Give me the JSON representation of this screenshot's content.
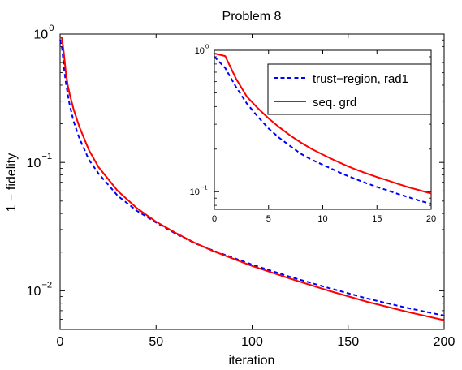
{
  "chart_data": {
    "title": "Problem  8",
    "type": "line",
    "xlabel": "iteration",
    "ylabel": "1 − fidelity",
    "xlim": [
      0,
      200
    ],
    "ylim": [
      0.005,
      1
    ],
    "yscale": "log",
    "grid": false,
    "x_ticks": [
      0,
      50,
      100,
      150,
      200
    ],
    "y_ticks": [
      {
        "value": 0.01,
        "base": "10",
        "exp": "−2"
      },
      {
        "value": 0.1,
        "base": "10",
        "exp": "−1"
      },
      {
        "value": 1,
        "base": "10",
        "exp": "0"
      }
    ],
    "series": [
      {
        "name": "trust−region, rad1",
        "color": "#0000ff",
        "dash": "dashed",
        "x": [
          0,
          1,
          2,
          3,
          4,
          5,
          7,
          10,
          15,
          20,
          30,
          40,
          50,
          60,
          70,
          80,
          100,
          120,
          140,
          160,
          180,
          200
        ],
        "y": [
          0.9,
          0.78,
          0.55,
          0.42,
          0.34,
          0.28,
          0.21,
          0.155,
          0.105,
          0.082,
          0.055,
          0.042,
          0.034,
          0.028,
          0.0235,
          0.0205,
          0.016,
          0.0128,
          0.0105,
          0.0087,
          0.0074,
          0.0064
        ]
      },
      {
        "name": "seq. grd",
        "color": "#ff0000",
        "dash": "solid",
        "x": [
          0,
          1,
          2,
          3,
          4,
          5,
          7,
          10,
          15,
          20,
          30,
          40,
          50,
          60,
          70,
          80,
          100,
          120,
          140,
          160,
          180,
          200
        ],
        "y": [
          0.95,
          0.93,
          0.7,
          0.5,
          0.4,
          0.34,
          0.26,
          0.19,
          0.125,
          0.092,
          0.06,
          0.044,
          0.0345,
          0.0283,
          0.0237,
          0.0203,
          0.0156,
          0.0124,
          0.01,
          0.0082,
          0.0069,
          0.0059
        ]
      }
    ],
    "inset": {
      "xlim": [
        0,
        20
      ],
      "ylim": [
        0.075,
        1
      ],
      "yscale": "log",
      "x_ticks": [
        0,
        5,
        10,
        15,
        20
      ],
      "y_ticks": [
        {
          "value": 0.1,
          "base": "10",
          "exp": "−1"
        },
        {
          "value": 1,
          "base": "10",
          "exp": "0"
        }
      ],
      "legend_position": "top-right",
      "series": [
        {
          "name": "trust−region, rad1",
          "color": "#0000ff",
          "dash": "dashed",
          "x": [
            0,
            1,
            2,
            3,
            4,
            5,
            6,
            7,
            8,
            9,
            10,
            11,
            12,
            13,
            14,
            15,
            16,
            17,
            18,
            19,
            20
          ],
          "y": [
            0.9,
            0.75,
            0.55,
            0.42,
            0.34,
            0.28,
            0.24,
            0.21,
            0.185,
            0.168,
            0.155,
            0.143,
            0.132,
            0.123,
            0.115,
            0.108,
            0.102,
            0.096,
            0.091,
            0.086,
            0.082
          ]
        },
        {
          "name": "seq. grd",
          "color": "#ff0000",
          "dash": "solid",
          "x": [
            0,
            1,
            2,
            3,
            4,
            5,
            6,
            7,
            8,
            9,
            10,
            11,
            12,
            13,
            14,
            15,
            16,
            17,
            18,
            19,
            20
          ],
          "y": [
            0.95,
            0.91,
            0.63,
            0.47,
            0.39,
            0.33,
            0.285,
            0.25,
            0.222,
            0.2,
            0.183,
            0.168,
            0.155,
            0.144,
            0.135,
            0.127,
            0.12,
            0.113,
            0.107,
            0.102,
            0.097
          ]
        }
      ]
    }
  }
}
